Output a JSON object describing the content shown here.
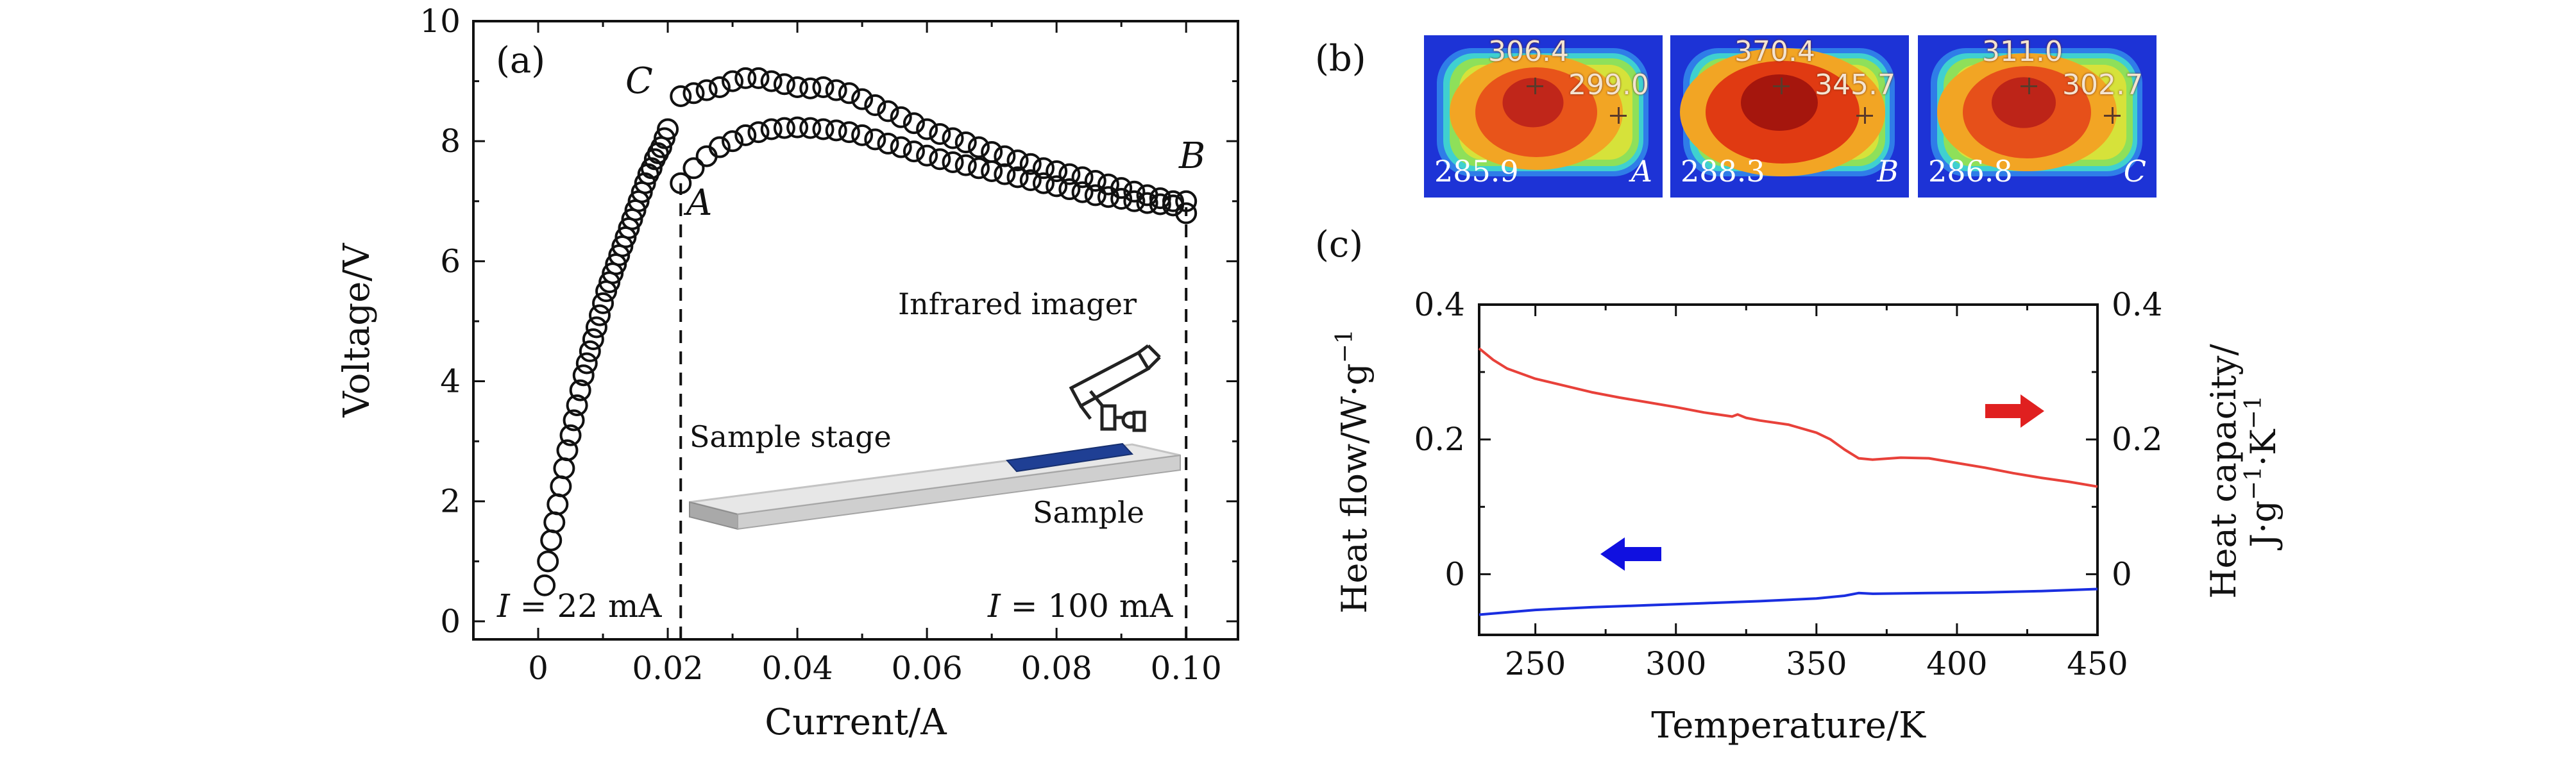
{
  "chart_data": [
    {
      "panel": "(a)",
      "type": "scatter",
      "xlabel": "Current/A",
      "ylabel": "Voltage/V",
      "xlim": [
        -0.01,
        0.108
      ],
      "ylim": [
        -0.3,
        10
      ],
      "xticks": [
        "0",
        "0.02",
        "0.04",
        "0.06",
        "0.08",
        "0.10"
      ],
      "yticks": [
        "0",
        "2",
        "4",
        "6",
        "8",
        "10"
      ],
      "marker": "open-circle",
      "series": [
        {
          "x": [
            0.001,
            0.0015,
            0.002,
            0.0025,
            0.003,
            0.0035,
            0.004,
            0.0045,
            0.005,
            0.0055,
            0.006,
            0.0065,
            0.007,
            0.0075,
            0.008,
            0.0085,
            0.009,
            0.0095,
            0.01,
            0.0105,
            0.011,
            0.0115,
            0.012,
            0.0125,
            0.013,
            0.0135,
            0.014,
            0.0145,
            0.015,
            0.0155,
            0.016,
            0.0165,
            0.017,
            0.0175,
            0.018,
            0.0185,
            0.019,
            0.0195,
            0.02
          ],
          "y": [
            0.6,
            1.0,
            1.35,
            1.65,
            1.95,
            2.25,
            2.55,
            2.85,
            3.1,
            3.35,
            3.6,
            3.85,
            4.1,
            4.3,
            4.5,
            4.7,
            4.9,
            5.1,
            5.3,
            5.5,
            5.65,
            5.8,
            5.95,
            6.1,
            6.25,
            6.4,
            6.55,
            6.7,
            6.85,
            7.0,
            7.15,
            7.3,
            7.45,
            7.55,
            7.7,
            7.8,
            7.9,
            8.05,
            8.2
          ]
        },
        {
          "x": [
            0.022,
            0.024,
            0.026,
            0.028,
            0.03,
            0.032,
            0.034,
            0.036,
            0.038,
            0.04,
            0.042,
            0.044,
            0.046,
            0.048,
            0.05,
            0.052,
            0.054,
            0.056,
            0.058,
            0.06,
            0.062,
            0.064,
            0.066,
            0.068,
            0.07,
            0.072,
            0.074,
            0.076,
            0.078,
            0.08,
            0.082,
            0.084,
            0.086,
            0.088,
            0.09,
            0.092,
            0.094,
            0.096,
            0.098,
            0.1
          ],
          "y": [
            8.75,
            8.8,
            8.85,
            8.9,
            9.0,
            9.05,
            9.05,
            9.0,
            8.95,
            8.9,
            8.88,
            8.9,
            8.85,
            8.8,
            8.7,
            8.6,
            8.5,
            8.4,
            8.3,
            8.2,
            8.12,
            8.05,
            7.98,
            7.9,
            7.82,
            7.75,
            7.68,
            7.62,
            7.55,
            7.5,
            7.45,
            7.4,
            7.34,
            7.28,
            7.22,
            7.16,
            7.1,
            7.05,
            7.0,
            7.0
          ]
        },
        {
          "x": [
            0.022,
            0.024,
            0.026,
            0.028,
            0.03,
            0.032,
            0.034,
            0.036,
            0.038,
            0.04,
            0.042,
            0.044,
            0.046,
            0.048,
            0.05,
            0.052,
            0.054,
            0.056,
            0.058,
            0.06,
            0.062,
            0.064,
            0.066,
            0.068,
            0.07,
            0.072,
            0.074,
            0.076,
            0.078,
            0.08,
            0.082,
            0.084,
            0.086,
            0.088,
            0.09,
            0.092,
            0.094,
            0.096,
            0.098,
            0.1
          ],
          "y": [
            7.3,
            7.55,
            7.75,
            7.9,
            8.0,
            8.1,
            8.15,
            8.2,
            8.22,
            8.23,
            8.22,
            8.2,
            8.18,
            8.15,
            8.1,
            8.03,
            7.96,
            7.9,
            7.83,
            7.76,
            7.7,
            7.65,
            7.6,
            7.55,
            7.5,
            7.45,
            7.4,
            7.35,
            7.3,
            7.25,
            7.2,
            7.15,
            7.1,
            7.07,
            7.04,
            7.0,
            6.97,
            6.95,
            6.93,
            6.8
          ]
        }
      ],
      "annotations": {
        "panel_label": "(a)",
        "point_C": "C",
        "point_A": "A",
        "point_B": "B",
        "left_current_I": "I",
        "left_current_value": "= 22 mA",
        "right_current_I": "I",
        "right_current_value": "= 100 mA",
        "inset_imager": "Infrared imager",
        "inset_stage": "Sample stage",
        "inset_sample": "Sample"
      },
      "dashed_lines_x": [
        0.022,
        0.1
      ]
    },
    {
      "panel": "(c)",
      "type": "line",
      "xlabel": "Temperature/K",
      "ylabel_left": "Heat flow/W·g",
      "ylabel_left_sup": "−1",
      "ylabel_right_line1": "Heat capacity/",
      "ylabel_right_line2": "J·g",
      "ylabel_right_sup1": "−1",
      "ylabel_right_mid": "·K",
      "ylabel_right_sup2": "−1",
      "xlim": [
        230,
        450
      ],
      "ylim": [
        -0.09,
        0.4
      ],
      "xticks": [
        "250",
        "300",
        "350",
        "400",
        "450"
      ],
      "yticks_left": [
        "0",
        "0.2",
        "0.4"
      ],
      "yticks_right": [
        "0",
        "0.2",
        "0.4"
      ],
      "series": [
        {
          "axis": "right",
          "color": "#e8413a",
          "x": [
            230,
            235,
            240,
            250,
            260,
            270,
            280,
            290,
            300,
            310,
            320,
            322,
            325,
            330,
            340,
            350,
            355,
            360,
            365,
            370,
            380,
            390,
            400,
            410,
            420,
            430,
            440,
            450
          ],
          "y": [
            0.335,
            0.318,
            0.305,
            0.29,
            0.28,
            0.27,
            0.262,
            0.255,
            0.248,
            0.24,
            0.234,
            0.237,
            0.232,
            0.228,
            0.222,
            0.21,
            0.2,
            0.185,
            0.172,
            0.17,
            0.173,
            0.172,
            0.165,
            0.158,
            0.15,
            0.143,
            0.137,
            0.13
          ]
        },
        {
          "axis": "left",
          "color": "#1a2ee0",
          "x": [
            230,
            250,
            270,
            290,
            310,
            330,
            350,
            360,
            365,
            370,
            390,
            410,
            430,
            450
          ],
          "y": [
            -0.06,
            -0.053,
            -0.049,
            -0.046,
            -0.043,
            -0.04,
            -0.036,
            -0.032,
            -0.028,
            -0.029,
            -0.028,
            -0.027,
            -0.025,
            -0.022
          ]
        }
      ],
      "panel_label": "(c)",
      "arrows": [
        {
          "direction": "right",
          "color": "#e02020"
        },
        {
          "direction": "left",
          "color": "#1010e0"
        }
      ]
    }
  ],
  "thermal_images": {
    "panel_label": "(b)",
    "images": [
      {
        "max": "306.4",
        "secondary": "299.0",
        "min": "285.9",
        "label": "A"
      },
      {
        "max": "370.4",
        "secondary": "345.7",
        "min": "288.3",
        "label": "B"
      },
      {
        "max": "311.0",
        "secondary": "302.7",
        "min": "286.8",
        "label": "C"
      }
    ]
  }
}
